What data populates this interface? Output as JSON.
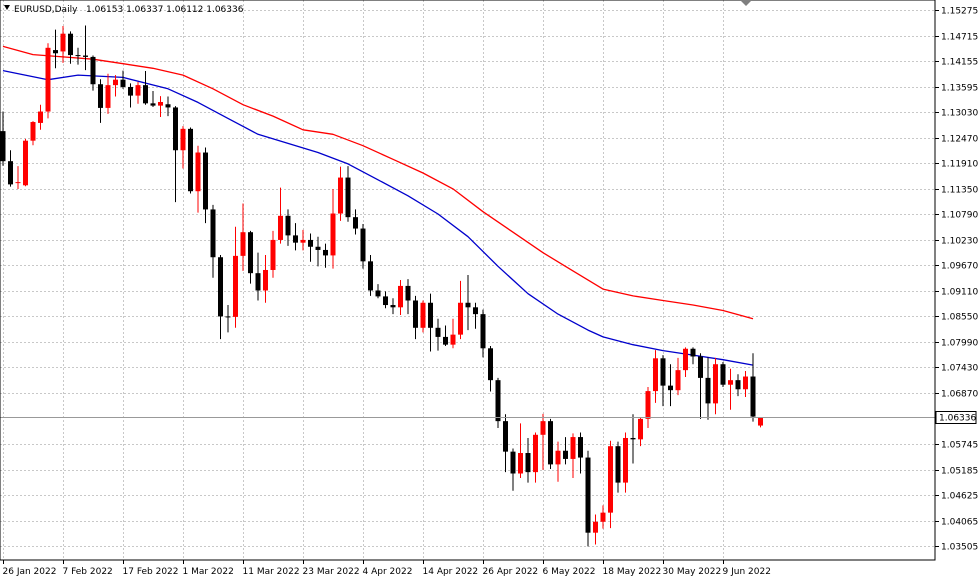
{
  "window": {
    "symbol_label": "EURUSD,Daily",
    "ohlc_label": "1.06153 1.06337 1.06112 1.06336"
  },
  "chart_data": {
    "type": "candlestick",
    "symbol": "EURUSD",
    "timeframe": "Daily",
    "y_range": [
      1.032,
      1.155
    ],
    "grid": true,
    "price_ticks": [
      "1.15275",
      "1.14715",
      "1.14155",
      "1.13595",
      "1.13030",
      "1.12470",
      "1.11910",
      "1.11350",
      "1.10790",
      "1.10230",
      "1.09670",
      "1.09110",
      "1.08550",
      "1.07990",
      "1.07430",
      "1.06870",
      "1.05745",
      "1.05185",
      "1.04625",
      "1.04065",
      "1.03505"
    ],
    "date_labels": [
      {
        "label": "26 Jan 2022",
        "index": 0
      },
      {
        "label": "7 Feb 2022",
        "index": 8
      },
      {
        "label": "17 Feb 2022",
        "index": 16
      },
      {
        "label": "1 Mar 2022",
        "index": 24
      },
      {
        "label": "11 Mar 2022",
        "index": 32
      },
      {
        "label": "23 Mar 2022",
        "index": 40
      },
      {
        "label": "4 Apr 2022",
        "index": 48
      },
      {
        "label": "14 Apr 2022",
        "index": 56
      },
      {
        "label": "26 Apr 2022",
        "index": 64
      },
      {
        "label": "6 May 2022",
        "index": 72
      },
      {
        "label": "18 May 2022",
        "index": 80
      },
      {
        "label": "30 May 2022",
        "index": 88
      },
      {
        "label": "9 Jun 2022",
        "index": 96
      }
    ],
    "current_price": "1.06336",
    "colors": {
      "bull": "#ff0000",
      "bear": "#000000",
      "ma_fast": "#0000cc",
      "ma_slow": "#ff0000",
      "price_line": "#999999",
      "grid": "#c8c8c8"
    },
    "candles": [
      [
        1.1262,
        1.1305,
        1.1186,
        1.1196
      ],
      [
        1.1196,
        1.122,
        1.114,
        1.1145
      ],
      [
        1.1148,
        1.1185,
        1.1135,
        1.115
      ],
      [
        1.1143,
        1.1245,
        1.1141,
        1.1241
      ],
      [
        1.1241,
        1.1284,
        1.1231,
        1.1282
      ],
      [
        1.128,
        1.132,
        1.1265,
        1.1305
      ],
      [
        1.1305,
        1.1455,
        1.129,
        1.1445
      ],
      [
        1.144,
        1.1485,
        1.14,
        1.1433
      ],
      [
        1.1437,
        1.1493,
        1.1412,
        1.1476
      ],
      [
        1.1476,
        1.1481,
        1.141,
        1.1429
      ],
      [
        1.1429,
        1.1445,
        1.1408,
        1.1428
      ],
      [
        1.1428,
        1.1494,
        1.1396,
        1.1425
      ],
      [
        1.1425,
        1.1428,
        1.1351,
        1.1365
      ],
      [
        1.1365,
        1.1376,
        1.128,
        1.1313
      ],
      [
        1.1313,
        1.1388,
        1.13,
        1.1363
      ],
      [
        1.1363,
        1.1385,
        1.1338,
        1.1375
      ],
      [
        1.1375,
        1.1395,
        1.1355,
        1.1359
      ],
      [
        1.1359,
        1.1367,
        1.1314,
        1.134
      ],
      [
        1.134,
        1.137,
        1.1322,
        1.1363
      ],
      [
        1.1363,
        1.1394,
        1.132,
        1.1323
      ],
      [
        1.1323,
        1.135,
        1.1315,
        1.1318
      ],
      [
        1.1318,
        1.1339,
        1.1293,
        1.1326
      ],
      [
        1.1321,
        1.1338,
        1.1295,
        1.1314
      ],
      [
        1.1314,
        1.1317,
        1.1106,
        1.122
      ],
      [
        1.122,
        1.1273,
        1.118,
        1.1267
      ],
      [
        1.1267,
        1.127,
        1.1125,
        1.113
      ],
      [
        1.113,
        1.123,
        1.1083,
        1.1215
      ],
      [
        1.1215,
        1.1226,
        1.106,
        1.109
      ],
      [
        1.109,
        1.11,
        1.094,
        1.0985
      ],
      [
        1.0985,
        1.099,
        1.0805,
        1.0855
      ],
      [
        1.0855,
        1.088,
        1.082,
        1.0854
      ],
      [
        1.0854,
        1.1052,
        1.083,
        1.0988
      ],
      [
        1.0988,
        1.1103,
        1.0955,
        1.104
      ],
      [
        1.104,
        1.1043,
        1.0927,
        1.095
      ],
      [
        1.095,
        1.0995,
        1.089,
        1.0912
      ],
      [
        1.0912,
        1.099,
        1.0885,
        1.0957
      ],
      [
        1.0957,
        1.1043,
        1.094,
        1.1023
      ],
      [
        1.1023,
        1.1138,
        1.1015,
        1.1076
      ],
      [
        1.1076,
        1.109,
        1.101,
        1.1033
      ],
      [
        1.1033,
        1.106,
        1.1,
        1.1017
      ],
      [
        1.1017,
        1.1045,
        1.1,
        1.1023
      ],
      [
        1.1023,
        1.1037,
        1.0975,
        1.1008
      ],
      [
        1.1008,
        1.103,
        1.0965,
        1.1001
      ],
      [
        1.1001,
        1.1015,
        1.0962,
        1.0989
      ],
      [
        1.0989,
        1.1135,
        1.096,
        1.1081
      ],
      [
        1.1081,
        1.1184,
        1.1065,
        1.116
      ],
      [
        1.116,
        1.1185,
        1.1063,
        1.1073
      ],
      [
        1.1073,
        1.109,
        1.1035,
        1.1048
      ],
      [
        1.1048,
        1.1058,
        1.096,
        1.0976
      ],
      [
        1.0976,
        1.099,
        1.09,
        1.0912
      ],
      [
        1.0912,
        1.0926,
        1.0895,
        1.0899
      ],
      [
        1.0899,
        1.091,
        1.0873,
        1.088
      ],
      [
        1.088,
        1.0895,
        1.086,
        1.0875
      ],
      [
        1.0875,
        1.0935,
        1.0858,
        1.0922
      ],
      [
        1.0922,
        1.0937,
        1.086,
        1.089
      ],
      [
        1.089,
        1.09,
        1.0805,
        1.083
      ],
      [
        1.083,
        1.089,
        1.082,
        1.0885
      ],
      [
        1.0885,
        1.0905,
        1.0778,
        1.083
      ],
      [
        1.083,
        1.085,
        1.078,
        1.081
      ],
      [
        1.081,
        1.0835,
        1.079,
        1.0793
      ],
      [
        1.0793,
        1.085,
        1.0785,
        1.0815
      ],
      [
        1.0815,
        1.0933,
        1.0805,
        1.0885
      ],
      [
        1.0885,
        1.0946,
        1.0825,
        1.0875
      ],
      [
        1.0875,
        1.0885,
        1.0828,
        1.086
      ],
      [
        1.086,
        1.087,
        1.0765,
        1.0785
      ],
      [
        1.0785,
        1.079,
        1.069,
        1.0715
      ],
      [
        1.0715,
        1.072,
        1.061,
        1.0625
      ],
      [
        1.0625,
        1.064,
        1.0513,
        1.0558
      ],
      [
        1.0558,
        1.0565,
        1.0472,
        1.051
      ],
      [
        1.051,
        1.062,
        1.05,
        1.0555
      ],
      [
        1.0555,
        1.0588,
        1.049,
        1.0513
      ],
      [
        1.0513,
        1.06,
        1.049,
        1.0595
      ],
      [
        1.0595,
        1.0641,
        1.0518,
        1.0625
      ],
      [
        1.0625,
        1.063,
        1.052,
        1.053
      ],
      [
        1.053,
        1.058,
        1.0492,
        1.056
      ],
      [
        1.056,
        1.059,
        1.053,
        1.0542
      ],
      [
        1.0542,
        1.0598,
        1.05,
        1.059
      ],
      [
        1.059,
        1.06,
        1.051,
        1.0545
      ],
      [
        1.0545,
        1.056,
        1.035,
        1.038
      ],
      [
        1.038,
        1.042,
        1.0354,
        1.0404
      ],
      [
        1.0404,
        1.044,
        1.0389,
        1.0424
      ],
      [
        1.0424,
        1.0582,
        1.039,
        1.057
      ],
      [
        1.057,
        1.058,
        1.0468,
        1.049
      ],
      [
        1.049,
        1.06,
        1.0468,
        1.0588
      ],
      [
        1.0588,
        1.064,
        1.0532,
        1.0585
      ],
      [
        1.0585,
        1.0634,
        1.057,
        1.063
      ],
      [
        1.063,
        1.07,
        1.061,
        1.0691
      ],
      [
        1.0691,
        1.0781,
        1.0665,
        1.0763
      ],
      [
        1.0763,
        1.077,
        1.0658,
        1.0703
      ],
      [
        1.0703,
        1.075,
        1.0658,
        1.0693
      ],
      [
        1.0693,
        1.0764,
        1.0682,
        1.0737
      ],
      [
        1.0737,
        1.0787,
        1.0722,
        1.0784
      ],
      [
        1.0784,
        1.0787,
        1.075,
        1.0767
      ],
      [
        1.0767,
        1.0774,
        1.063,
        1.072
      ],
      [
        1.072,
        1.0765,
        1.0628,
        1.0664
      ],
      [
        1.0664,
        1.0764,
        1.064,
        1.075
      ],
      [
        1.075,
        1.0755,
        1.07,
        1.0705
      ],
      [
        1.0705,
        1.074,
        1.065,
        1.0715
      ],
      [
        1.0715,
        1.0728,
        1.068,
        1.0695
      ],
      [
        1.0695,
        1.0735,
        1.0678,
        1.0723
      ],
      [
        1.0723,
        1.0774,
        1.0624,
        1.0635
      ],
      [
        1.06153,
        1.06337,
        1.06112,
        1.06336
      ]
    ],
    "ma_fast": {
      "color": "#0000cc",
      "points": [
        [
          0,
          1.1395
        ],
        [
          6,
          1.1375
        ],
        [
          10,
          1.1385
        ],
        [
          16,
          1.138
        ],
        [
          22,
          1.1355
        ],
        [
          26,
          1.1325
        ],
        [
          30,
          1.129
        ],
        [
          34,
          1.1255
        ],
        [
          38,
          1.1235
        ],
        [
          42,
          1.1215
        ],
        [
          46,
          1.119
        ],
        [
          50,
          1.1155
        ],
        [
          54,
          1.112
        ],
        [
          58,
          1.108
        ],
        [
          62,
          1.103
        ],
        [
          66,
          1.0965
        ],
        [
          70,
          1.0905
        ],
        [
          74,
          1.086
        ],
        [
          78,
          1.0825
        ],
        [
          80,
          1.081
        ],
        [
          84,
          1.0793
        ],
        [
          88,
          1.078
        ],
        [
          92,
          1.077
        ],
        [
          96,
          1.076
        ],
        [
          100,
          1.0748
        ]
      ]
    },
    "ma_slow": {
      "color": "#ff0000",
      "points": [
        [
          0,
          1.1448
        ],
        [
          4,
          1.143
        ],
        [
          8,
          1.1425
        ],
        [
          12,
          1.142
        ],
        [
          16,
          1.141
        ],
        [
          20,
          1.14
        ],
        [
          24,
          1.1385
        ],
        [
          28,
          1.1355
        ],
        [
          32,
          1.132
        ],
        [
          36,
          1.1295
        ],
        [
          40,
          1.1265
        ],
        [
          44,
          1.1255
        ],
        [
          48,
          1.123
        ],
        [
          52,
          1.12
        ],
        [
          56,
          1.117
        ],
        [
          60,
          1.1135
        ],
        [
          64,
          1.1085
        ],
        [
          68,
          1.104
        ],
        [
          72,
          1.0995
        ],
        [
          76,
          1.0955
        ],
        [
          80,
          1.0915
        ],
        [
          84,
          1.09
        ],
        [
          88,
          1.089
        ],
        [
          92,
          1.088
        ],
        [
          96,
          1.0868
        ],
        [
          100,
          1.085
        ]
      ]
    }
  }
}
